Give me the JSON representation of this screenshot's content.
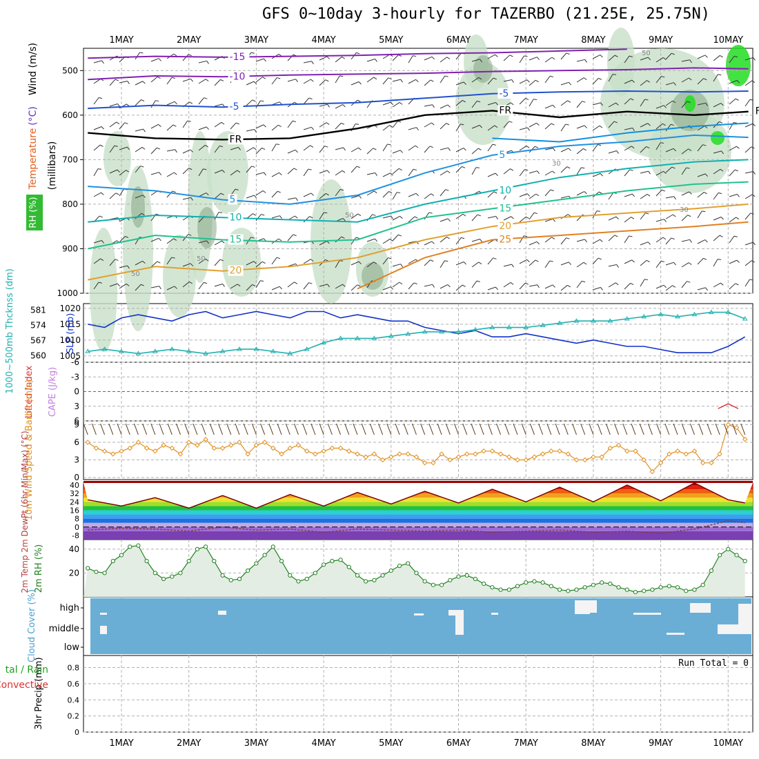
{
  "title": "GFS 0~10day 3-hourly for TAZERBO (21.25E, 25.75N)",
  "colors": {
    "frame": "#000000",
    "grid": "#b0b0b0",
    "rh": "#c8e0c8",
    "rh_dark": "#7fa07f",
    "rh_green": "#22dd22",
    "slp": "#1030c8",
    "thick": "#20b0b0",
    "wind": "#e09020",
    "rh2m": "#208020",
    "cloud": "#6aaed6",
    "cape": "#c080e0",
    "li": "#e03030"
  },
  "chart_data": [
    {
      "panel": "upper-air",
      "type": "contour",
      "ylabel_lines": [
        {
          "text": "RH (%)",
          "color": "#20a020"
        },
        {
          "text": "Temperature",
          "color": "#e06020"
        },
        {
          "text": "(°C)",
          "color": "#6030c0"
        },
        {
          "text": "Wind (m/s)",
          "color": "#000000"
        }
      ],
      "ylabel2": "(millibars)",
      "ylim": [
        1000,
        450
      ],
      "yticks": [
        500,
        600,
        700,
        800,
        900,
        1000
      ],
      "x_labels": [
        "1MAY",
        "2MAY",
        "3MAY",
        "4MAY",
        "5MAY",
        "6MAY",
        "7MAY",
        "8MAY",
        "9MAY",
        "10MAY"
      ],
      "x_days_range": [
        -0.5,
        9.3
      ],
      "contours": [
        {
          "name": "-15",
          "color": "#8020b0",
          "labels": [
            "-15"
          ],
          "x": [
            -0.5,
            0.5,
            1.5,
            2.5,
            3.5,
            4.5,
            5.5,
            6.5,
            7.5
          ],
          "p": [
            472,
            468,
            470,
            468,
            466,
            462,
            460,
            456,
            452
          ]
        },
        {
          "name": "-10",
          "color": "#8020b0",
          "labels": [
            "-10"
          ],
          "x": [
            -0.5,
            0.5,
            1.5,
            2.5,
            3.5,
            4.5,
            5.5,
            6.5,
            7.5,
            8.5,
            9.3
          ],
          "p": [
            520,
            512,
            514,
            510,
            508,
            506,
            502,
            500,
            498,
            494,
            496
          ]
        },
        {
          "name": "-5",
          "color": "#1f50d0",
          "labels": [
            "-5",
            "-5"
          ],
          "x": [
            -0.5,
            0.5,
            1.5,
            2.5,
            3.5,
            4.5,
            5.5,
            6.5,
            7.5,
            8.5,
            9.3
          ],
          "p": [
            585,
            578,
            582,
            576,
            572,
            562,
            552,
            548,
            546,
            548,
            546
          ]
        },
        {
          "name": "FR",
          "color": "#000000",
          "labels": [
            "FR",
            "FR",
            "FR"
          ],
          "x": [
            -0.5,
            0.5,
            1.5,
            2.5,
            3.5,
            4.5,
            5.5,
            6.5,
            7.5,
            8.5,
            9.3
          ],
          "p": [
            640,
            652,
            655,
            652,
            630,
            600,
            590,
            605,
            592,
            600,
            592
          ]
        },
        {
          "name": "0-iso",
          "color": "#1090e0",
          "labels": [],
          "x": [
            5.5,
            6.5,
            7.5,
            8.5,
            9.3
          ],
          "p": [
            652,
            660,
            640,
            625,
            618
          ]
        },
        {
          "name": "5",
          "color": "#2090e0",
          "labels": [
            "5",
            "5"
          ],
          "x": [
            -0.5,
            0.5,
            1.5,
            2.5,
            3.5,
            4.5,
            5.5,
            6.5,
            7.5,
            8.5,
            9.3
          ],
          "p": [
            760,
            770,
            790,
            800,
            780,
            730,
            690,
            670,
            660,
            645,
            650
          ]
        },
        {
          "name": "10",
          "color": "#10b0b0",
          "labels": [
            "10",
            "10"
          ],
          "x": [
            -0.5,
            0.5,
            1.5,
            2.5,
            3.5,
            4.5,
            5.5,
            6.5,
            7.5,
            8.5,
            9.3
          ],
          "p": [
            840,
            825,
            830,
            835,
            840,
            800,
            770,
            740,
            720,
            705,
            700
          ]
        },
        {
          "name": "15",
          "color": "#20c090",
          "labels": [
            "15",
            "15"
          ],
          "x": [
            -0.5,
            0.5,
            1.5,
            2.5,
            3.5,
            4.5,
            5.5,
            6.5,
            7.5,
            8.5,
            9.3
          ],
          "p": [
            900,
            870,
            880,
            885,
            880,
            830,
            810,
            790,
            770,
            755,
            750
          ]
        },
        {
          "name": "20",
          "color": "#e0a030",
          "labels": [
            "20",
            "20"
          ],
          "x": [
            -0.5,
            0.5,
            1.5,
            2.5,
            3.5,
            4.5,
            5.5,
            6.5,
            7.5,
            8.5,
            9.3
          ],
          "p": [
            970,
            940,
            950,
            940,
            920,
            880,
            850,
            830,
            820,
            810,
            800
          ]
        },
        {
          "name": "25",
          "color": "#e08020",
          "labels": [
            "25"
          ],
          "x": [
            3.5,
            4.5,
            5.5,
            6.5,
            7.5,
            8.5,
            9.3
          ],
          "p": [
            990,
            920,
            880,
            870,
            860,
            850,
            840
          ]
        }
      ],
      "rh_labels": [
        "50",
        "50",
        "50",
        "30",
        "50",
        "30"
      ]
    },
    {
      "panel": "thickness-slp",
      "type": "line",
      "ylabel_left": "1000~500mb Thcknss (dm)",
      "ylabel_right": "SLP (mb)",
      "left_ticks": [
        581,
        574,
        567,
        560
      ],
      "right_ticks": [
        1020,
        1015,
        1010,
        1005
      ],
      "series": [
        {
          "name": "SLP",
          "color": "#1030c8",
          "x": [
            -0.5,
            -0.25,
            0,
            0.25,
            0.5,
            0.75,
            1,
            1.25,
            1.5,
            1.75,
            2,
            2.25,
            2.5,
            2.75,
            3,
            3.25,
            3.5,
            3.75,
            4,
            4.25,
            4.5,
            4.75,
            5,
            5.25,
            5.5,
            5.75,
            6,
            6.25,
            6.5,
            6.75,
            7,
            7.25,
            7.5,
            7.75,
            8,
            8.25,
            8.5,
            8.75,
            9,
            9.25
          ],
          "values": [
            1015,
            1014,
            1017,
            1018,
            1017,
            1016,
            1018,
            1019,
            1017,
            1018,
            1019,
            1018,
            1017,
            1019,
            1019,
            1017,
            1018,
            1017,
            1016,
            1016,
            1014,
            1013,
            1012,
            1013,
            1011,
            1011,
            1012,
            1011,
            1010,
            1009,
            1010,
            1009,
            1008,
            1008,
            1007,
            1006,
            1006,
            1006,
            1008,
            1011
          ]
        },
        {
          "name": "Thickness",
          "color": "#20b0b0",
          "x": [
            -0.5,
            -0.25,
            0,
            0.25,
            0.5,
            0.75,
            1,
            1.25,
            1.5,
            1.75,
            2,
            2.25,
            2.5,
            2.75,
            3,
            3.25,
            3.5,
            3.75,
            4,
            4.25,
            4.5,
            4.75,
            5,
            5.25,
            5.5,
            5.75,
            6,
            6.25,
            6.5,
            6.75,
            7,
            7.25,
            7.5,
            7.75,
            8,
            8.25,
            8.5,
            8.75,
            9,
            9.25
          ],
          "values": [
            562,
            563,
            562,
            561,
            562,
            563,
            562,
            561,
            562,
            563,
            563,
            562,
            561,
            563,
            566,
            568,
            568,
            568,
            569,
            570,
            571,
            571,
            571,
            572,
            573,
            573,
            573,
            574,
            575,
            576,
            576,
            576,
            577,
            578,
            579,
            578,
            579,
            580,
            580,
            577
          ]
        }
      ]
    },
    {
      "panel": "cape-li",
      "type": "line",
      "ylabel_left": "Lifted Index",
      "ylabel_right": "CAPE (J/kg)",
      "ticks": [
        -6,
        -3,
        0,
        3,
        6
      ],
      "series": [
        {
          "name": "CAPE",
          "color": "#e03030",
          "x": [
            8.85,
            9.0,
            9.15
          ],
          "values": [
            3.5,
            2.5,
            3.5
          ]
        }
      ]
    },
    {
      "panel": "10m-wind",
      "type": "line",
      "ylabel": "10m Wind Speed & Barbs (m/s)",
      "ticks": [
        0,
        3,
        6,
        9
      ],
      "series": [
        {
          "name": "Wind Speed",
          "color": "#e09020",
          "x": [
            -0.5,
            -0.375,
            -0.25,
            -0.125,
            0,
            0.125,
            0.25,
            0.375,
            0.5,
            0.625,
            0.75,
            0.875,
            1,
            1.125,
            1.25,
            1.375,
            1.5,
            1.625,
            1.75,
            1.875,
            2,
            2.125,
            2.25,
            2.375,
            2.5,
            2.625,
            2.75,
            2.875,
            3,
            3.125,
            3.25,
            3.375,
            3.5,
            3.625,
            3.75,
            3.875,
            4,
            4.125,
            4.25,
            4.375,
            4.5,
            4.625,
            4.75,
            4.875,
            5,
            5.125,
            5.25,
            5.375,
            5.5,
            5.625,
            5.75,
            5.875,
            6,
            6.125,
            6.25,
            6.375,
            6.5,
            6.625,
            6.75,
            6.875,
            7,
            7.125,
            7.25,
            7.375,
            7.5,
            7.625,
            7.75,
            7.875,
            8,
            8.125,
            8.25,
            8.375,
            8.5,
            8.625,
            8.75,
            8.875,
            9,
            9.125,
            9.25
          ],
          "values": [
            6,
            5,
            4.5,
            4,
            4.5,
            5,
            6,
            5,
            4.5,
            5.5,
            5,
            4,
            6,
            5.5,
            6.5,
            5,
            5,
            5.5,
            6,
            4,
            5.5,
            6,
            5,
            4,
            5,
            5.5,
            4.5,
            4,
            4.5,
            5,
            5,
            4.5,
            4,
            3.5,
            4,
            3,
            3.5,
            4,
            4,
            3.5,
            2.5,
            2.5,
            4,
            3,
            3.5,
            4,
            4,
            4.5,
            4.5,
            4,
            3.5,
            3,
            3,
            3.5,
            4,
            4.5,
            4.5,
            4,
            3,
            3,
            3.5,
            3.5,
            5,
            5.5,
            4.5,
            4.5,
            3,
            1,
            2.5,
            4,
            4.5,
            4,
            4.5,
            2.5,
            2.5,
            4,
            9,
            8.5,
            6.5
          ]
        }
      ]
    },
    {
      "panel": "2m-temp",
      "type": "area",
      "ylabel": "2m Temp 2m DewPt (6hr Min/Max) (°C)",
      "ticks": [
        40,
        32,
        24,
        16,
        8,
        0,
        -8
      ],
      "series": [
        {
          "name": "Temp",
          "color": "#800000",
          "x": [
            -0.5,
            0,
            0.5,
            1,
            1.5,
            2,
            2.5,
            3,
            3.5,
            4,
            4.5,
            5,
            5.5,
            6,
            6.5,
            7,
            7.5,
            8,
            8.5,
            9,
            9.25
          ],
          "values": [
            26,
            20,
            28,
            18,
            30,
            18,
            31,
            20,
            33,
            22,
            34,
            23,
            36,
            24,
            38,
            24,
            40,
            25,
            42,
            26,
            23
          ]
        },
        {
          "name": "DewPt",
          "color": "#804040",
          "x": [
            -0.5,
            0,
            0.5,
            1,
            1.5,
            2,
            2.5,
            3,
            3.5,
            4,
            4.5,
            5,
            5.5,
            6,
            6.5,
            7,
            7.5,
            8,
            8.5,
            9,
            9.25
          ],
          "values": [
            -3,
            -1,
            -2,
            -4,
            0,
            -3,
            -2,
            -5,
            -2,
            -3,
            -4,
            -3,
            -5,
            -4,
            -3,
            -5,
            -4,
            -6,
            -2,
            6,
            4
          ]
        }
      ]
    },
    {
      "panel": "2m-rh",
      "type": "area",
      "ylabel": "2m RH (%)",
      "ticks": [
        40,
        20
      ],
      "series": [
        {
          "name": "RH",
          "color": "#208020",
          "x": [
            -0.5,
            -0.375,
            -0.25,
            -0.125,
            0,
            0.125,
            0.25,
            0.375,
            0.5,
            0.625,
            0.75,
            0.875,
            1,
            1.125,
            1.25,
            1.375,
            1.5,
            1.625,
            1.75,
            1.875,
            2,
            2.125,
            2.25,
            2.375,
            2.5,
            2.625,
            2.75,
            2.875,
            3,
            3.125,
            3.25,
            3.375,
            3.5,
            3.625,
            3.75,
            3.875,
            4,
            4.125,
            4.25,
            4.375,
            4.5,
            4.625,
            4.75,
            4.875,
            5,
            5.125,
            5.25,
            5.375,
            5.5,
            5.625,
            5.75,
            5.875,
            6,
            6.125,
            6.25,
            6.375,
            6.5,
            6.625,
            6.75,
            6.875,
            7,
            7.125,
            7.25,
            7.375,
            7.5,
            7.625,
            7.75,
            7.875,
            8,
            8.125,
            8.25,
            8.375,
            8.5,
            8.625,
            8.75,
            8.875,
            9,
            9.125,
            9.25
          ],
          "values": [
            24,
            21,
            20,
            30,
            35,
            42,
            43,
            30,
            20,
            15,
            17,
            20,
            30,
            40,
            42,
            30,
            18,
            14,
            15,
            22,
            28,
            35,
            42,
            30,
            18,
            13,
            15,
            20,
            27,
            30,
            31,
            25,
            18,
            13,
            14,
            18,
            22,
            26,
            28,
            20,
            13,
            10,
            10,
            14,
            17,
            18,
            15,
            11,
            8,
            6,
            6,
            9,
            12,
            13,
            12,
            9,
            6,
            5,
            6,
            8,
            10,
            12,
            11,
            8,
            6,
            4,
            5,
            6,
            8,
            9,
            8,
            5,
            6,
            10,
            22,
            35,
            40,
            35,
            30
          ]
        }
      ]
    },
    {
      "panel": "cloud-cover",
      "type": "heatmap",
      "ylabel": "Cloud Cover (%)",
      "levels": [
        "high",
        "middle",
        "low"
      ]
    },
    {
      "panel": "precip",
      "type": "bar",
      "ylabel_left_1": "tal / Rain",
      "ylabel_left_2": "Convective",
      "ylabel": "3hr Precip (mm)",
      "ticks": [
        0.8,
        0.6,
        0.4,
        0.2,
        0
      ],
      "tick_labels": [
        "0.8",
        "0.6",
        "0.4",
        "0.2",
        "0"
      ],
      "run_total": "Run Total = 0",
      "values": []
    }
  ]
}
